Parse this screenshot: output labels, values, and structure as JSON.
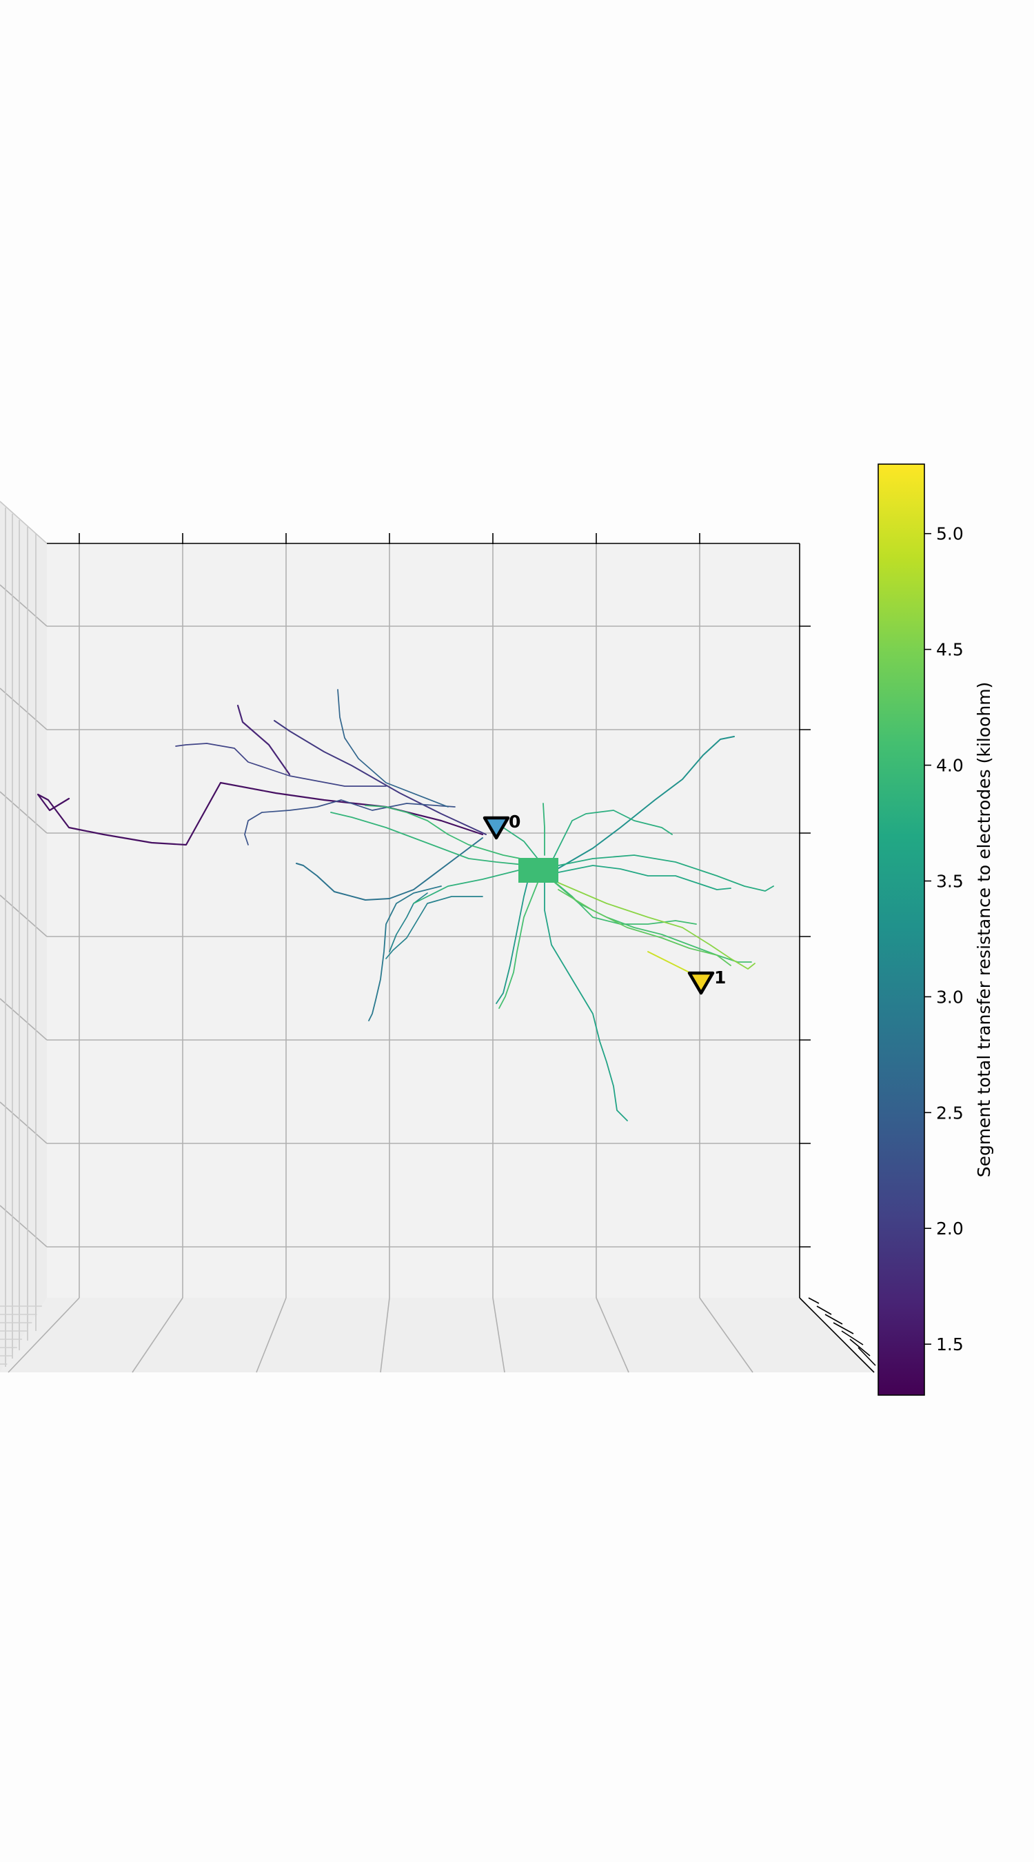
{
  "chart_data": {
    "type": "scatter",
    "title": "",
    "xlabel": "",
    "ylabel": "",
    "grid": true,
    "view": "3D axes, front view",
    "colormap": "viridis",
    "colorbar": {
      "label": "Segment total transfer resistance to electrodes (kiloohm)",
      "range": [
        1.28,
        5.3
      ],
      "ticks": [
        "1.5",
        "2.0",
        "2.5",
        "3.0",
        "3.5",
        "4.0",
        "4.5",
        "5.0"
      ],
      "location": "right"
    },
    "soma": {
      "value": 4.15,
      "color": "#3dbc74"
    },
    "electrodes": [
      {
        "label": "0",
        "value": 2.75,
        "color": "#4aa0d0"
      },
      {
        "label": "1",
        "value": 5.25,
        "color": "#f2d21e"
      }
    ],
    "morphology": {
      "description": "reconstructed neuron, segments colored by transfer resistance",
      "branch_count": 27
    }
  }
}
